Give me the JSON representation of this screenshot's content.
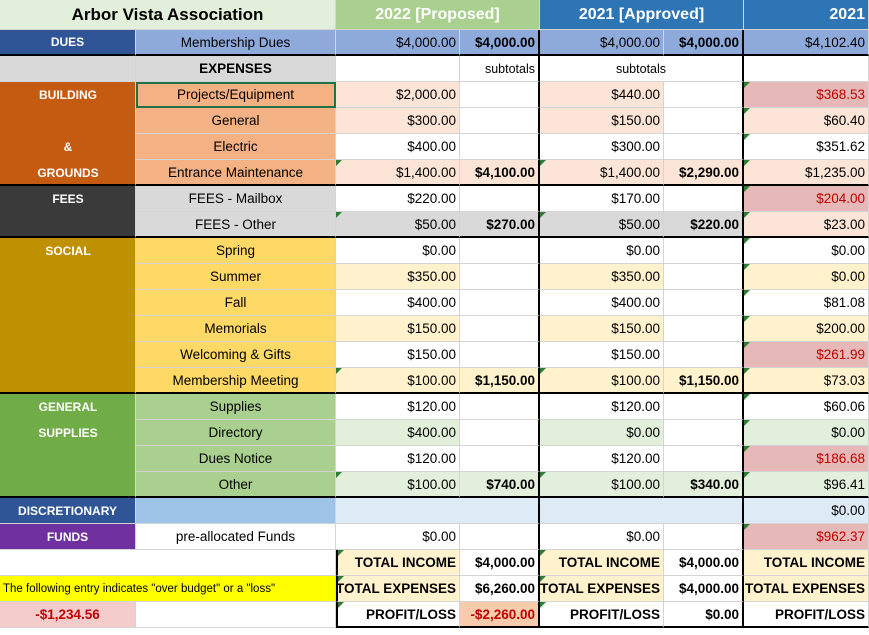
{
  "header": {
    "title": "Arbor Vista Association",
    "col_2022": "2022 [Proposed]",
    "col_2021": "2021 [Approved]",
    "col_2021_actual": "2021"
  },
  "dues": {
    "label": "DUES",
    "item": "Membership Dues",
    "v2022": "$4,000.00",
    "s2022": "$4,000.00",
    "v2021": "$4,000.00",
    "s2021": "$4,000.00",
    "a2021": "$4,102.40"
  },
  "expenses_header": {
    "label": "EXPENSES",
    "subtotals_2022": "subtotals",
    "subtotals_2021": "subtotals"
  },
  "categories": {
    "building": "BUILDING",
    "amp": "&",
    "grounds": "GROUNDS",
    "fees": "FEES",
    "social": "SOCIAL",
    "general": "GENERAL",
    "supplies": "SUPPLIES",
    "discretionary": "DISCRETIONARY",
    "funds": "FUNDS"
  },
  "rows": [
    {
      "item": "Projects/Equipment",
      "v2022": "$2,000.00",
      "s2022": "",
      "v2021": "$440.00",
      "s2021": "",
      "a2021": "$368.53"
    },
    {
      "item": "General",
      "v2022": "$300.00",
      "s2022": "",
      "v2021": "$150.00",
      "s2021": "",
      "a2021": "$60.40"
    },
    {
      "item": "Electric",
      "v2022": "$400.00",
      "s2022": "",
      "v2021": "$300.00",
      "s2021": "",
      "a2021": "$351.62"
    },
    {
      "item": "Entrance Maintenance",
      "v2022": "$1,400.00",
      "s2022": "$4,100.00",
      "v2021": "$1,400.00",
      "s2021": "$2,290.00",
      "a2021": "$1,235.00"
    },
    {
      "item": "FEES - Mailbox",
      "v2022": "$220.00",
      "s2022": "",
      "v2021": "$170.00",
      "s2021": "",
      "a2021": "$204.00"
    },
    {
      "item": "FEES - Other",
      "v2022": "$50.00",
      "s2022": "$270.00",
      "v2021": "$50.00",
      "s2021": "$220.00",
      "a2021": "$23.00"
    },
    {
      "item": "Spring",
      "v2022": "$0.00",
      "s2022": "",
      "v2021": "$0.00",
      "s2021": "",
      "a2021": "$0.00"
    },
    {
      "item": "Summer",
      "v2022": "$350.00",
      "s2022": "",
      "v2021": "$350.00",
      "s2021": "",
      "a2021": "$0.00"
    },
    {
      "item": "Fall",
      "v2022": "$400.00",
      "s2022": "",
      "v2021": "$400.00",
      "s2021": "",
      "a2021": "$81.08"
    },
    {
      "item": "Memorials",
      "v2022": "$150.00",
      "s2022": "",
      "v2021": "$150.00",
      "s2021": "",
      "a2021": "$200.00"
    },
    {
      "item": "Welcoming & Gifts",
      "v2022": "$150.00",
      "s2022": "",
      "v2021": "$150.00",
      "s2021": "",
      "a2021": "$261.99"
    },
    {
      "item": "Membership Meeting",
      "v2022": "$100.00",
      "s2022": "$1,150.00",
      "v2021": "$100.00",
      "s2021": "$1,150.00",
      "a2021": "$73.03"
    },
    {
      "item": "Supplies",
      "v2022": "$120.00",
      "s2022": "",
      "v2021": "$120.00",
      "s2021": "",
      "a2021": "$60.06"
    },
    {
      "item": "Directory",
      "v2022": "$400.00",
      "s2022": "",
      "v2021": "$0.00",
      "s2021": "",
      "a2021": "$0.00"
    },
    {
      "item": "Dues Notice",
      "v2022": "$120.00",
      "s2022": "",
      "v2021": "$120.00",
      "s2021": "",
      "a2021": "$186.68"
    },
    {
      "item": "Other",
      "v2022": "$100.00",
      "s2022": "$740.00",
      "v2021": "$100.00",
      "s2021": "$340.00",
      "a2021": "$96.41"
    }
  ],
  "discretionary": {
    "a2021": "$0.00"
  },
  "funds": {
    "item": "pre-allocated Funds",
    "v2022": "$0.00",
    "v2021": "$0.00",
    "a2021": "$962.37"
  },
  "totals": {
    "income_label": "TOTAL INCOME",
    "expenses_label": "TOTAL EXPENSES",
    "profit_label": "PROFIT/LOSS",
    "income_2022": "$4,000.00",
    "expenses_2022": "$6,260.00",
    "profit_2022": "-$2,260.00",
    "income_2021": "$4,000.00",
    "expenses_2021": "$4,000.00",
    "profit_2021": "$0.00",
    "expenses_2021_actual_label": "TOTAL EXPENSES"
  },
  "note": {
    "text": "The following entry  indicates \"over budget\" or a \"loss\"",
    "value": "-$1,234.56"
  },
  "colors": {
    "dues_blue": "#2f5597",
    "building_orange": "#c55a11",
    "fees_dark": "#3a3a3a",
    "social_gold": "#bf9000",
    "supplies_green": "#70ad47",
    "discretionary_blue": "#2f5597",
    "funds_purple": "#7030a0",
    "note_yellow": "#ffff00"
  }
}
